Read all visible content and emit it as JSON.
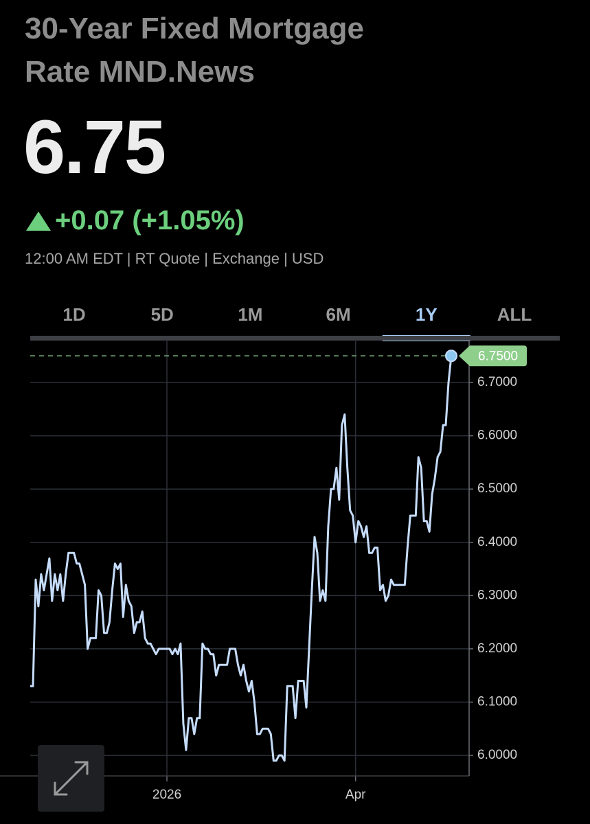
{
  "header": {
    "title": "30-Year Fixed Mortgage Rate MND.News",
    "price": "6.75",
    "change": "+0.07 (+1.05%)",
    "meta": "12:00 AM EDT | RT Quote | Exchange | USD"
  },
  "tabs": [
    "1D",
    "5D",
    "1M",
    "6M",
    "1Y",
    "ALL"
  ],
  "active_tab": 4,
  "chart_data": {
    "type": "line",
    "color": "#c6dcfb",
    "categories": [
      null,
      null,
      null,
      null,
      null,
      null,
      null,
      null,
      null,
      null,
      null,
      null,
      null,
      null,
      null,
      null,
      null,
      null,
      null,
      null,
      null,
      null,
      null,
      null,
      null,
      null,
      null,
      null,
      null,
      null,
      null,
      null,
      null,
      null,
      null,
      null,
      null,
      null,
      null,
      null,
      null,
      null,
      null,
      null,
      null,
      null,
      null,
      null,
      null,
      null,
      "2026",
      null,
      null,
      null,
      null,
      null,
      null,
      null,
      null,
      null,
      null,
      null,
      null,
      null,
      null,
      null,
      null,
      null,
      null,
      null,
      null,
      null,
      null,
      null,
      null,
      null,
      null,
      null,
      null,
      null,
      null,
      null,
      null,
      null,
      null,
      null,
      null,
      null,
      null,
      null,
      null,
      null,
      null,
      null,
      null,
      null,
      null,
      null,
      null,
      null,
      null,
      null,
      null,
      null,
      null,
      null,
      null,
      null,
      null,
      null,
      null,
      null,
      null,
      null,
      null,
      null,
      null,
      null,
      null,
      "Apr",
      null,
      null,
      null,
      null,
      null,
      null,
      null,
      null,
      null,
      null,
      null,
      null,
      null,
      null,
      null,
      null,
      null,
      null,
      null,
      null,
      null,
      null,
      null,
      null,
      null,
      null,
      null,
      null,
      null,
      null,
      null,
      null,
      null,
      null,
      null
    ],
    "values": [
      6.13,
      6.13,
      6.33,
      6.28,
      6.34,
      6.31,
      6.34,
      6.37,
      6.29,
      6.34,
      6.31,
      6.34,
      6.29,
      6.34,
      6.38,
      6.38,
      6.38,
      6.36,
      6.36,
      6.34,
      6.32,
      6.2,
      6.22,
      6.22,
      6.22,
      6.31,
      6.3,
      6.23,
      6.23,
      6.25,
      6.31,
      6.36,
      6.35,
      6.36,
      6.26,
      6.32,
      6.29,
      6.28,
      6.23,
      6.25,
      6.25,
      6.27,
      6.22,
      6.21,
      6.21,
      6.2,
      6.19,
      6.2,
      6.2,
      6.2,
      6.2,
      6.2,
      6.19,
      6.2,
      6.19,
      6.21,
      6.06,
      6.01,
      6.07,
      6.07,
      6.04,
      6.07,
      6.07,
      6.21,
      6.2,
      6.2,
      6.19,
      6.19,
      6.15,
      6.17,
      6.17,
      6.17,
      6.17,
      6.2,
      6.2,
      6.2,
      6.17,
      6.15,
      6.17,
      6.14,
      6.12,
      6.14,
      6.1,
      6.04,
      6.04,
      6.05,
      6.05,
      6.05,
      6.04,
      5.99,
      5.99,
      6.0,
      6.0,
      5.99,
      6.13,
      6.13,
      6.13,
      6.07,
      6.14,
      6.14,
      6.14,
      6.09,
      6.2,
      6.31,
      6.41,
      6.38,
      6.29,
      6.31,
      6.29,
      6.43,
      6.5,
      6.5,
      6.54,
      6.48,
      6.62,
      6.64,
      6.54,
      6.46,
      6.45,
      6.4,
      6.44,
      6.43,
      6.41,
      6.43,
      6.38,
      6.38,
      6.39,
      6.39,
      6.31,
      6.32,
      6.29,
      6.3,
      6.33,
      6.32,
      6.32,
      6.32,
      6.32,
      6.32,
      6.39,
      6.45,
      6.45,
      6.45,
      6.56,
      6.54,
      6.44,
      6.44,
      6.42,
      6.49,
      6.52,
      6.56,
      6.57,
      6.62,
      6.62,
      6.7,
      6.75
    ],
    "ylim": [
      5.964,
      6.78
    ],
    "yticks": [
      {
        "value": 6.0,
        "label": "6.0000"
      },
      {
        "value": 6.1,
        "label": "6.1000"
      },
      {
        "value": 6.2,
        "label": "6.2000"
      },
      {
        "value": 6.3,
        "label": "6.3000"
      },
      {
        "value": 6.4,
        "label": "6.4000"
      },
      {
        "value": 6.5,
        "label": "6.5000"
      },
      {
        "value": 6.6,
        "label": "6.6000"
      },
      {
        "value": 6.7,
        "label": "6.7000"
      }
    ],
    "current": {
      "value": 6.75,
      "label": "6.7500"
    },
    "grid": true
  }
}
